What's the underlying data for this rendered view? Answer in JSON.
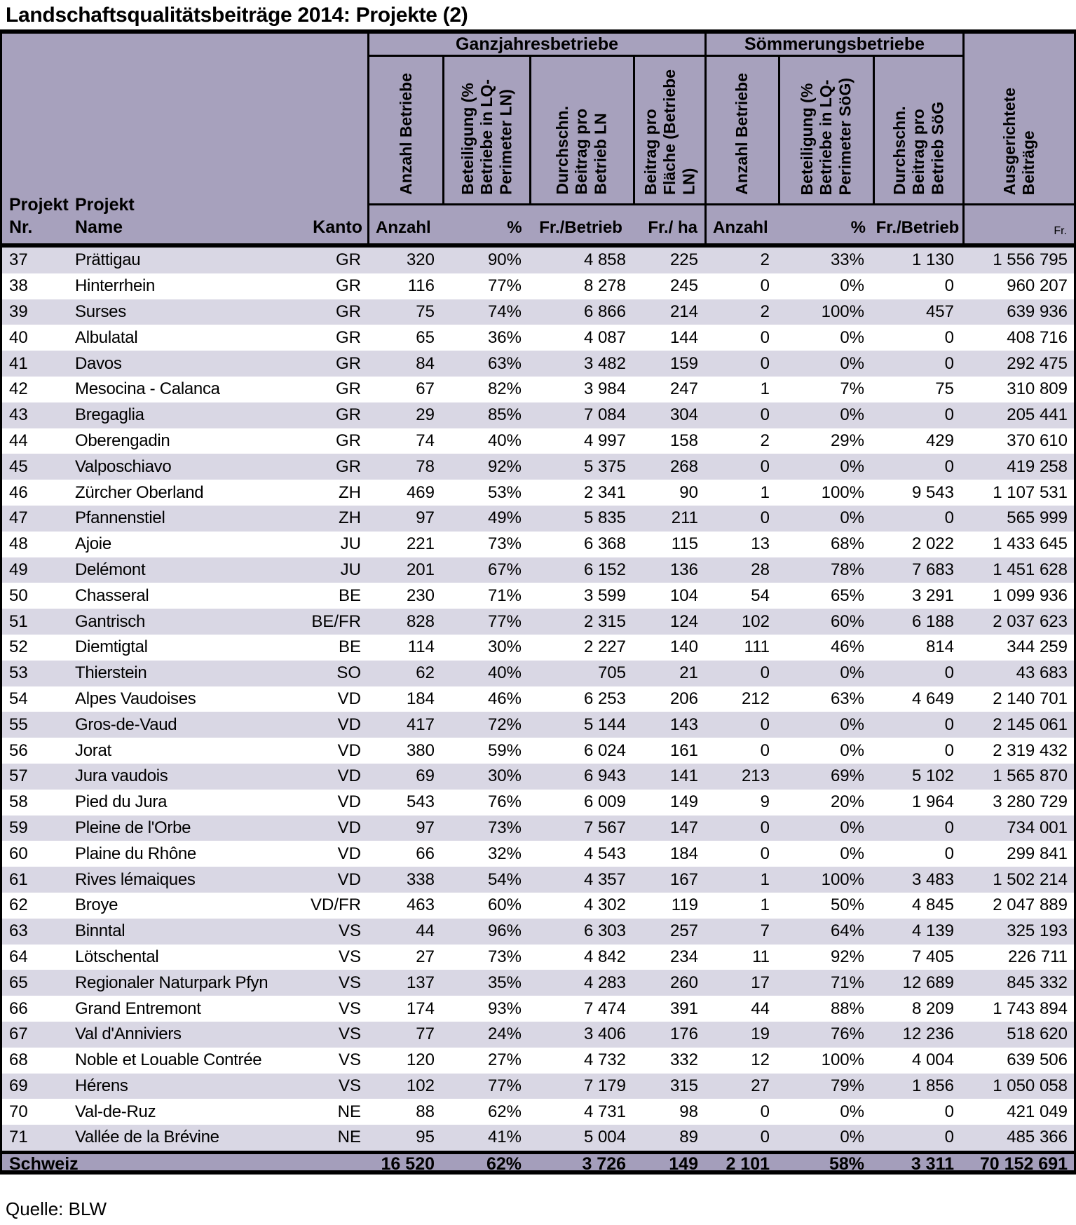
{
  "title": "Landschaftsqualitätsbeiträge 2014: Projekte (2)",
  "source": "Quelle: BLW",
  "colors": {
    "header_bg": "#a7a1bd",
    "row_shaded_bg": "#d9d7e4",
    "row_plain_bg": "#ffffff",
    "total_bg": "#a49ebb",
    "border": "#000000"
  },
  "table": {
    "left_header": {
      "col1_top": "Projekt",
      "col1_bottom": "Nr.",
      "col2_top": "Projekt",
      "col2_bottom": "Name",
      "col3_bottom": "Kanto"
    },
    "groups": [
      {
        "label": "Ganzjahresbetriebe",
        "rotated": [
          "Anzahl Betriebe",
          "Beteiligung  (%\nBetriebe in LQ-\nPerimeter LN)",
          "Durchschn.\nBeitrag pro\nBetrieb LN",
          "Beitrag pro\nFläche  (Betriebe\nLN)"
        ],
        "sub": [
          "Anzahl",
          "%",
          "Fr./Betrieb",
          "Fr./ ha"
        ]
      },
      {
        "label": "Sömmerungsbetriebe",
        "rotated": [
          "Anzahl Betriebe",
          "Beteiligung  (%\nBetriebe in LQ-\nPerimeter SöG)",
          "Durchschn.\nBeitrag pro\nBetrieb SöG"
        ],
        "sub": [
          "Anzahl",
          "%",
          "Fr./Betrieb"
        ]
      }
    ],
    "last_col": {
      "rotated": "Ausgerichtete\nBeiträge",
      "sub": "Fr."
    },
    "rows": [
      [
        "37",
        "Prättigau",
        "GR",
        "320",
        "90%",
        "4 858",
        "225",
        "2",
        "33%",
        "1 130",
        "1 556 795"
      ],
      [
        "38",
        "Hinterrhein",
        "GR",
        "116",
        "77%",
        "8 278",
        "245",
        "0",
        "0%",
        "0",
        "960 207"
      ],
      [
        "39",
        "Surses",
        "GR",
        "75",
        "74%",
        "6 866",
        "214",
        "2",
        "100%",
        "457",
        "639 936"
      ],
      [
        "40",
        "Albulatal",
        "GR",
        "65",
        "36%",
        "4 087",
        "144",
        "0",
        "0%",
        "0",
        "408 716"
      ],
      [
        "41",
        "Davos",
        "GR",
        "84",
        "63%",
        "3 482",
        "159",
        "0",
        "0%",
        "0",
        "292 475"
      ],
      [
        "42",
        "Mesocina - Calanca",
        "GR",
        "67",
        "82%",
        "3 984",
        "247",
        "1",
        "7%",
        "75",
        "310 809"
      ],
      [
        "43",
        "Bregaglia",
        "GR",
        "29",
        "85%",
        "7 084",
        "304",
        "0",
        "0%",
        "0",
        "205 441"
      ],
      [
        "44",
        "Oberengadin",
        "GR",
        "74",
        "40%",
        "4 997",
        "158",
        "2",
        "29%",
        "429",
        "370 610"
      ],
      [
        "45",
        "Valposchiavo",
        "GR",
        "78",
        "92%",
        "5 375",
        "268",
        "0",
        "0%",
        "0",
        "419 258"
      ],
      [
        "46",
        "Zürcher Oberland",
        "ZH",
        "469",
        "53%",
        "2 341",
        "90",
        "1",
        "100%",
        "9 543",
        "1 107 531"
      ],
      [
        "47",
        "Pfannenstiel",
        "ZH",
        "97",
        "49%",
        "5 835",
        "211",
        "0",
        "0%",
        "0",
        "565 999"
      ],
      [
        "48",
        "Ajoie",
        "JU",
        "221",
        "73%",
        "6 368",
        "115",
        "13",
        "68%",
        "2 022",
        "1 433 645"
      ],
      [
        "49",
        "Delémont",
        "JU",
        "201",
        "67%",
        "6 152",
        "136",
        "28",
        "78%",
        "7 683",
        "1 451 628"
      ],
      [
        "50",
        "Chasseral",
        "BE",
        "230",
        "71%",
        "3 599",
        "104",
        "54",
        "65%",
        "3 291",
        "1 099 936"
      ],
      [
        "51",
        "Gantrisch",
        "BE/FR",
        "828",
        "77%",
        "2 315",
        "124",
        "102",
        "60%",
        "6 188",
        "2 037 623"
      ],
      [
        "52",
        "Diemtigtal",
        "BE",
        "114",
        "30%",
        "2 227",
        "140",
        "111",
        "46%",
        "814",
        "344 259"
      ],
      [
        "53",
        "Thierstein",
        "SO",
        "62",
        "40%",
        "705",
        "21",
        "0",
        "0%",
        "0",
        "43 683"
      ],
      [
        "54",
        "Alpes Vaudoises",
        "VD",
        "184",
        "46%",
        "6 253",
        "206",
        "212",
        "63%",
        "4 649",
        "2 140 701"
      ],
      [
        "55",
        "Gros-de-Vaud",
        "VD",
        "417",
        "72%",
        "5 144",
        "143",
        "0",
        "0%",
        "0",
        "2 145 061"
      ],
      [
        "56",
        "Jorat",
        "VD",
        "380",
        "59%",
        "6 024",
        "161",
        "0",
        "0%",
        "0",
        "2 319 432"
      ],
      [
        "57",
        "Jura vaudois",
        "VD",
        "69",
        "30%",
        "6 943",
        "141",
        "213",
        "69%",
        "5 102",
        "1 565 870"
      ],
      [
        "58",
        "Pied du Jura",
        "VD",
        "543",
        "76%",
        "6 009",
        "149",
        "9",
        "20%",
        "1 964",
        "3 280 729"
      ],
      [
        "59",
        "Pleine de l'Orbe",
        "VD",
        "97",
        "73%",
        "7 567",
        "147",
        "0",
        "0%",
        "0",
        "734 001"
      ],
      [
        "60",
        "Plaine du Rhône",
        "VD",
        "66",
        "32%",
        "4 543",
        "184",
        "0",
        "0%",
        "0",
        "299 841"
      ],
      [
        "61",
        "Rives lémaiques",
        "VD",
        "338",
        "54%",
        "4 357",
        "167",
        "1",
        "100%",
        "3 483",
        "1 502 214"
      ],
      [
        "62",
        "Broye",
        "VD/FR",
        "463",
        "60%",
        "4 302",
        "119",
        "1",
        "50%",
        "4 845",
        "2 047 889"
      ],
      [
        "63",
        "Binntal",
        "VS",
        "44",
        "96%",
        "6 303",
        "257",
        "7",
        "64%",
        "4 139",
        "325 193"
      ],
      [
        "64",
        "Lötschental",
        "VS",
        "27",
        "73%",
        "4 842",
        "234",
        "11",
        "92%",
        "7 405",
        "226 711"
      ],
      [
        "65",
        "Regionaler Naturpark Pfyn",
        "VS",
        "137",
        "35%",
        "4 283",
        "260",
        "17",
        "71%",
        "12 689",
        "845 332"
      ],
      [
        "66",
        "Grand Entremont",
        "VS",
        "174",
        "93%",
        "7 474",
        "391",
        "44",
        "88%",
        "8 209",
        "1 743 894"
      ],
      [
        "67",
        "Val d'Anniviers",
        "VS",
        "77",
        "24%",
        "3 406",
        "176",
        "19",
        "76%",
        "12 236",
        "518 620"
      ],
      [
        "68",
        "Noble et Louable Contrée",
        "VS",
        "120",
        "27%",
        "4 732",
        "332",
        "12",
        "100%",
        "4 004",
        "639 506"
      ],
      [
        "69",
        "Hérens",
        "VS",
        "102",
        "77%",
        "7 179",
        "315",
        "27",
        "79%",
        "1 856",
        "1 050 058"
      ],
      [
        "70",
        "Val-de-Ruz",
        "NE",
        "88",
        "62%",
        "4 731",
        "98",
        "0",
        "0%",
        "0",
        "421 049"
      ],
      [
        "71",
        "Vallée de la Brévine",
        "NE",
        "95",
        "41%",
        "5 004",
        "89",
        "0",
        "0%",
        "0",
        "485 366"
      ]
    ],
    "total": {
      "label": "Schweiz",
      "values": [
        "16 520",
        "62%",
        "3 726",
        "149",
        "2 101",
        "58%",
        "3 311",
        "70 152 691"
      ]
    }
  }
}
